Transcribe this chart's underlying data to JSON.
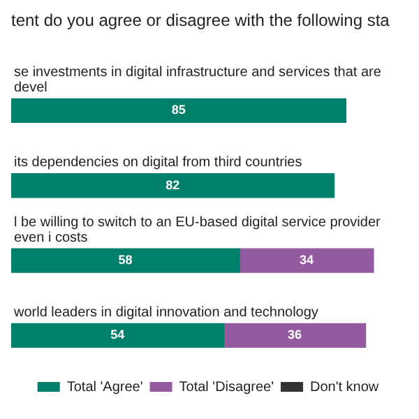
{
  "chart_data": {
    "type": "bar",
    "orientation": "horizontal",
    "stacked": true,
    "title": "tent do you agree or disagree with the following sta",
    "categories": [
      "se investments in digital infrastructure and services that are devel",
      "its dependencies on digital from third countries",
      "l be willing to switch to an EU-based digital service provider even i costs",
      "world leaders in digital innovation and technology"
    ],
    "series": [
      {
        "name": "Total 'Agree'",
        "color": "#00806a",
        "values": [
          85,
          82,
          58,
          54
        ]
      },
      {
        "name": "Total 'Disagree'",
        "color": "#945aa0",
        "values": [
          null,
          null,
          34,
          36
        ]
      },
      {
        "name": "Don't know",
        "color": "#333333",
        "values": [
          null,
          null,
          null,
          null
        ]
      }
    ],
    "data_labels": true,
    "legend": "bottom"
  }
}
